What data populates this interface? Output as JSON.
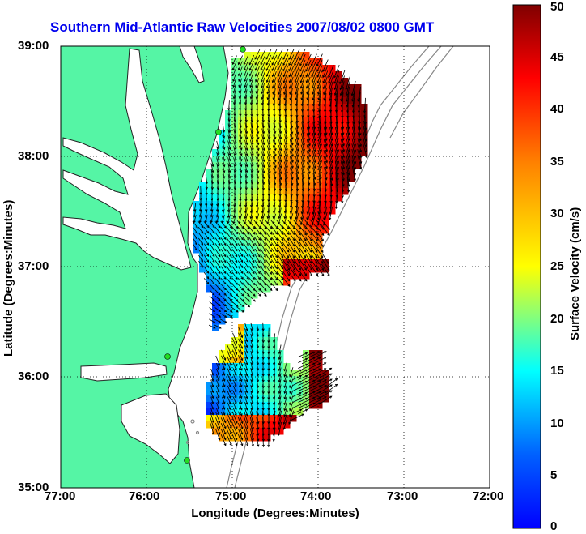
{
  "title": "Southern Mid-Atlantic Raw Velocities 2007/08/02 0800 GMT",
  "xlabel": "Longitude (Degrees:Minutes)",
  "ylabel": "Latitude (Degrees:Minutes)",
  "colorbar": {
    "label": "Surface Velocity (cm/s)",
    "min": 0,
    "max": 50,
    "ticks": [
      "0",
      "5",
      "10",
      "15",
      "20",
      "25",
      "30",
      "35",
      "40",
      "45",
      "50"
    ],
    "colormap": "jet"
  },
  "axes": {
    "x_ticks": [
      "77:00",
      "76:00",
      "75:00",
      "74:00",
      "73:00",
      "72:00"
    ],
    "y_ticks": [
      "39:00",
      "38:00",
      "37:00",
      "36:00",
      "35:00"
    ],
    "xlim": [
      -77,
      -72
    ],
    "ylim": [
      35,
      39
    ],
    "grid": "dotted"
  },
  "colors": {
    "land": "#55f5a5",
    "water": "#ffffff",
    "title": "#0000ee",
    "station": "#22dd22"
  }
}
